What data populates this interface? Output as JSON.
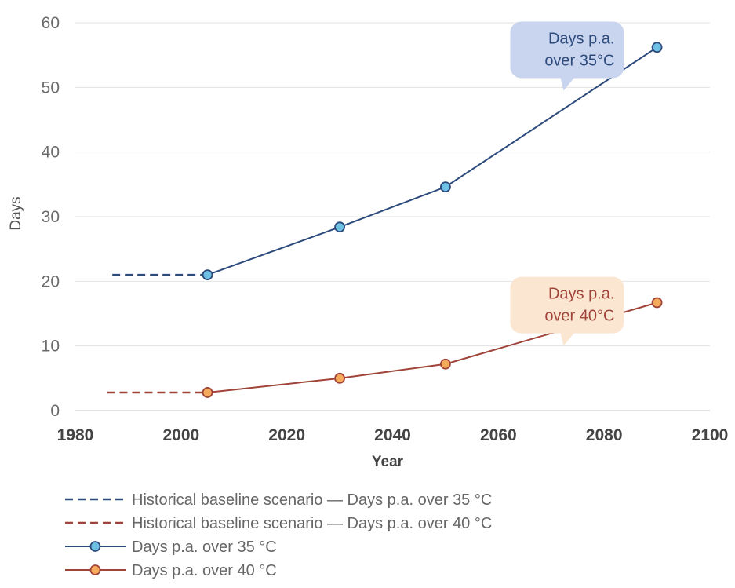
{
  "chart_data": {
    "type": "line",
    "xlabel": "Year",
    "ylabel": "Days",
    "xlim": [
      1980,
      2100
    ],
    "ylim": [
      0,
      60
    ],
    "x_ticks": [
      "1980",
      "2000",
      "2020",
      "2040",
      "2060",
      "2080",
      "2100"
    ],
    "y_ticks": [
      "0",
      "10",
      "20",
      "30",
      "40",
      "50",
      "60"
    ],
    "grid": "horizontal",
    "legend_position": "bottom",
    "series": [
      {
        "name": "Historical baseline scenario — Days p.a. over 35 °C",
        "style": "dashed",
        "color": "#2c4a7c",
        "x": [
          1987,
          2005
        ],
        "y": [
          21,
          21
        ]
      },
      {
        "name": "Historical baseline scenario — Days p.a. over 40 °C",
        "style": "dashed",
        "color": "#a0443a",
        "x": [
          1986,
          2005
        ],
        "y": [
          2.8,
          2.8
        ]
      },
      {
        "name": "Days p.a. over 35 °C",
        "style": "solid-markers",
        "color": "#2c4a7c",
        "marker_color": "#6ec1e4",
        "x": [
          2005,
          2030,
          2050,
          2090
        ],
        "y": [
          21,
          28.4,
          34.6,
          56.2
        ]
      },
      {
        "name": "Days p.a. over 40 °C",
        "style": "solid-markers",
        "color": "#a0443a",
        "marker_color": "#f5a95b",
        "x": [
          2005,
          2030,
          2050,
          2090
        ],
        "y": [
          2.8,
          5,
          7.2,
          16.7
        ]
      }
    ],
    "annotations": [
      {
        "lines": [
          "Days p.a.",
          "over 35°C"
        ],
        "x": 2073,
        "y": 58,
        "fill": "#c9d5ee",
        "text_color": "#2c4a7c"
      },
      {
        "lines": [
          "Days p.a.",
          "over 40°C"
        ],
        "x": 2073,
        "y": 18.5,
        "fill": "#fbe6d2",
        "text_color": "#a0443a"
      }
    ]
  }
}
